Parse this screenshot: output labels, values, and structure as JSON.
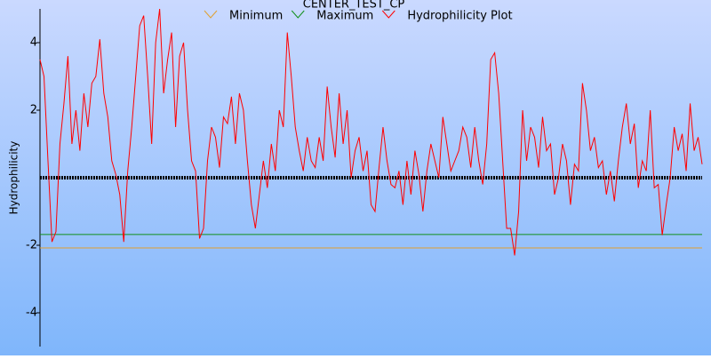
{
  "chart_data": {
    "type": "line",
    "title": "CENTER_TEST_CP",
    "ylabel": "Hydrophilicity",
    "ylim": [
      -5,
      5
    ],
    "yticks": [
      -4,
      -2,
      2,
      4
    ],
    "series": [
      {
        "name": "Minimum",
        "color": "#e0a030",
        "value": -2.08
      },
      {
        "name": "Maximum",
        "color": "#10901a",
        "value": -1.68
      },
      {
        "name": "Hydrophilicity Plot",
        "color": "#ff0000",
        "values": [
          3.5,
          3.0,
          0.5,
          -1.9,
          -1.6,
          1.0,
          2.2,
          3.6,
          1.0,
          2.0,
          0.8,
          2.5,
          1.5,
          2.8,
          3.0,
          4.1,
          2.5,
          1.8,
          0.5,
          0.1,
          -0.5,
          -1.9,
          0.2,
          1.5,
          3.0,
          4.5,
          4.8,
          3.0,
          1.0,
          4.0,
          5.0,
          2.5,
          3.5,
          4.3,
          1.5,
          3.6,
          4.0,
          2.0,
          0.5,
          0.2,
          -1.8,
          -1.5,
          0.5,
          1.5,
          1.2,
          0.3,
          1.8,
          1.6,
          2.4,
          1.0,
          2.5,
          2.0,
          0.5,
          -0.8,
          -1.5,
          -0.5,
          0.5,
          -0.3,
          1.0,
          0.2,
          2.0,
          1.5,
          4.3,
          3.0,
          1.5,
          0.8,
          0.2,
          1.2,
          0.5,
          0.3,
          1.2,
          0.5,
          2.7,
          1.5,
          0.6,
          2.5,
          1.0,
          2.0,
          0.0,
          0.8,
          1.2,
          0.2,
          0.8,
          -0.8,
          -1.0,
          0.3,
          1.5,
          0.5,
          -0.2,
          -0.3,
          0.2,
          -0.8,
          0.5,
          -0.5,
          0.8,
          0.1,
          -1.0,
          0.2,
          1.0,
          0.5,
          0.0,
          1.8,
          1.0,
          0.2,
          0.5,
          0.8,
          1.5,
          1.2,
          0.3,
          1.5,
          0.5,
          -0.2,
          1.0,
          3.5,
          3.7,
          2.5,
          0.5,
          -1.5,
          -1.5,
          -2.3,
          -1.0,
          2.0,
          0.5,
          1.5,
          1.2,
          0.3,
          1.8,
          0.8,
          1.0,
          -0.5,
          0.0,
          1.0,
          0.5,
          -0.8,
          0.4,
          0.2,
          2.8,
          2.0,
          0.8,
          1.2,
          0.3,
          0.5,
          -0.5,
          0.2,
          -0.7,
          0.5,
          1.5,
          2.2,
          1.0,
          1.6,
          -0.3,
          0.5,
          0.2,
          2.0,
          -0.3,
          -0.2,
          -1.7,
          -0.8,
          0.0,
          1.5,
          0.8,
          1.3,
          0.2,
          2.2,
          0.8,
          1.2,
          0.4
        ]
      }
    ]
  }
}
